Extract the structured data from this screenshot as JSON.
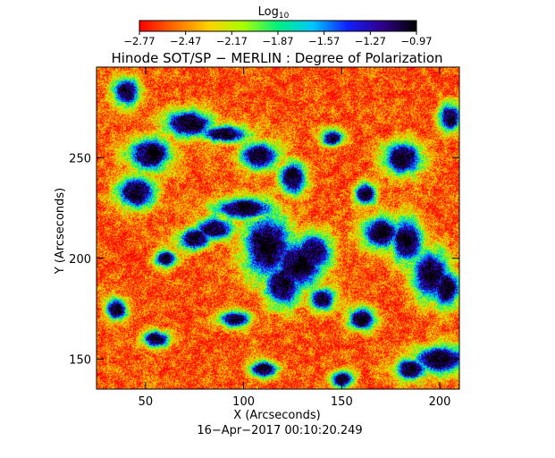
{
  "chart_data": {
    "type": "heatmap",
    "title": "Hinode SOT/SP − MERLIN : Degree of Polarization",
    "subtitle": "16−Apr−2017 00:10:20.249",
    "xlabel": "X (Arcseconds)",
    "ylabel": "Y (Arcseconds)",
    "xlim": [
      25,
      210
    ],
    "ylim": [
      135,
      295
    ],
    "x_ticks": [
      50,
      100,
      150,
      200
    ],
    "y_ticks": [
      150,
      200,
      250
    ],
    "grid": false,
    "colorbar": {
      "title_base": "Log",
      "title_sub": "10",
      "range": [
        -2.77,
        -0.97
      ],
      "tick_values": [
        -2.77,
        -2.47,
        -2.17,
        -1.87,
        -1.57,
        -1.27,
        -0.97
      ],
      "tick_labels": [
        "−2.77",
        "−2.47",
        "−2.17",
        "−1.87",
        "−1.57",
        "−1.27",
        "−0.97"
      ],
      "colormap": [
        "#ff0000",
        "#ff6a00",
        "#ffd000",
        "#a8ff00",
        "#00f080",
        "#00c8ff",
        "#1020ff",
        "#30008c",
        "#000000"
      ]
    },
    "background_level": -2.6,
    "network_level": -1.4,
    "network_features": [
      {
        "x": 112,
        "y": 206,
        "sx": 9,
        "sy": 12
      },
      {
        "x": 128,
        "y": 197,
        "sx": 9,
        "sy": 9
      },
      {
        "x": 135,
        "y": 203,
        "sx": 7,
        "sy": 7
      },
      {
        "x": 120,
        "y": 187,
        "sx": 7,
        "sy": 8
      },
      {
        "x": 100,
        "y": 225,
        "sx": 11,
        "sy": 4
      },
      {
        "x": 85,
        "y": 215,
        "sx": 7,
        "sy": 4
      },
      {
        "x": 75,
        "y": 210,
        "sx": 6,
        "sy": 4
      },
      {
        "x": 45,
        "y": 233,
        "sx": 7,
        "sy": 6
      },
      {
        "x": 52,
        "y": 252,
        "sx": 8,
        "sy": 6
      },
      {
        "x": 72,
        "y": 267,
        "sx": 9,
        "sy": 5
      },
      {
        "x": 90,
        "y": 262,
        "sx": 9,
        "sy": 3
      },
      {
        "x": 40,
        "y": 283,
        "sx": 5,
        "sy": 5
      },
      {
        "x": 108,
        "y": 251,
        "sx": 7,
        "sy": 5
      },
      {
        "x": 125,
        "y": 240,
        "sx": 5,
        "sy": 6
      },
      {
        "x": 181,
        "y": 250,
        "sx": 7,
        "sy": 6
      },
      {
        "x": 170,
        "y": 213,
        "sx": 7,
        "sy": 6
      },
      {
        "x": 183,
        "y": 209,
        "sx": 6,
        "sy": 8
      },
      {
        "x": 195,
        "y": 192,
        "sx": 7,
        "sy": 9
      },
      {
        "x": 203,
        "y": 185,
        "sx": 5,
        "sy": 7
      },
      {
        "x": 200,
        "y": 150,
        "sx": 10,
        "sy": 5
      },
      {
        "x": 185,
        "y": 145,
        "sx": 6,
        "sy": 4
      },
      {
        "x": 160,
        "y": 170,
        "sx": 5,
        "sy": 4
      },
      {
        "x": 140,
        "y": 180,
        "sx": 5,
        "sy": 4
      },
      {
        "x": 95,
        "y": 170,
        "sx": 6,
        "sy": 3
      },
      {
        "x": 55,
        "y": 160,
        "sx": 5,
        "sy": 3
      },
      {
        "x": 60,
        "y": 200,
        "sx": 4,
        "sy": 3
      },
      {
        "x": 162,
        "y": 232,
        "sx": 4,
        "sy": 4
      },
      {
        "x": 145,
        "y": 260,
        "sx": 4,
        "sy": 3
      },
      {
        "x": 35,
        "y": 175,
        "sx": 4,
        "sy": 4
      },
      {
        "x": 150,
        "y": 140,
        "sx": 4,
        "sy": 3
      },
      {
        "x": 110,
        "y": 145,
        "sx": 5,
        "sy": 3
      },
      {
        "x": 205,
        "y": 270,
        "sx": 4,
        "sy": 5
      }
    ]
  }
}
